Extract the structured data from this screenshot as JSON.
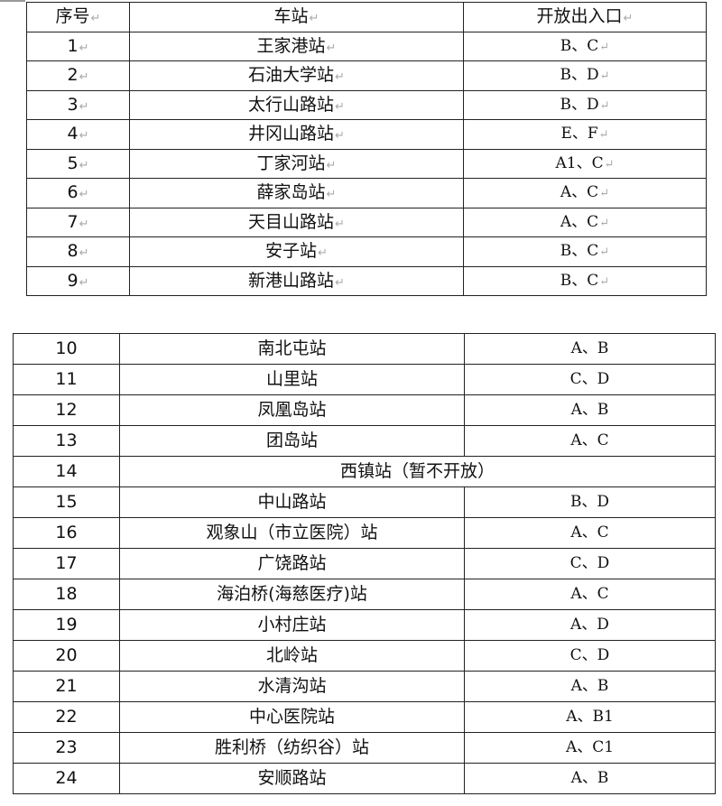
{
  "table1": {
    "headers": [
      "序号",
      "车站",
      "开放出入口"
    ],
    "rows": [
      [
        "1",
        "王家港站",
        "B、C"
      ],
      [
        "2",
        "石油大学站",
        "B、D"
      ],
      [
        "3",
        "太行山路站",
        "B、D"
      ],
      [
        "4",
        "井冈山路站",
        "E、F"
      ],
      [
        "5",
        "丁家河站",
        "A1、C"
      ],
      [
        "6",
        "薛家岛站",
        "A、C"
      ],
      [
        "7",
        "天目山路站",
        "A、C"
      ],
      [
        "8",
        "安子站",
        "B、C"
      ],
      [
        "9",
        "新港山路站",
        "B、C"
      ]
    ]
  },
  "table2": {
    "rows": [
      [
        "10",
        "南北屯站",
        "A、B"
      ],
      [
        "11",
        "山里站",
        "C、D"
      ],
      [
        "12",
        "凤凰岛站",
        "A、B"
      ],
      [
        "13",
        "团岛站",
        "A、C"
      ],
      [
        "14",
        "西镇站（暂不开放）",
        ""
      ],
      [
        "15",
        "中山路站",
        "B、D"
      ],
      [
        "16",
        "观象山（市立医院）站",
        "A、C"
      ],
      [
        "17",
        "广饶路站",
        "C、D"
      ],
      [
        "18",
        "海泊桥(海慈医疗)站",
        "A、C"
      ],
      [
        "19",
        "小村庄站",
        "A、D"
      ],
      [
        "20",
        "北岭站",
        "C、D"
      ],
      [
        "21",
        "水清沟站",
        "A、B"
      ],
      [
        "22",
        "中心医院站",
        "A、B1"
      ],
      [
        "23",
        "胜利桥（纺织谷）站",
        "A、C1"
      ],
      [
        "24",
        "安顺路站",
        "A、B"
      ]
    ]
  }
}
